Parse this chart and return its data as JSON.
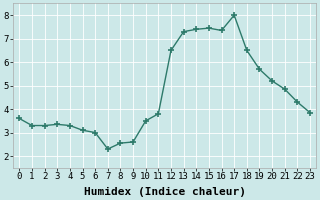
{
  "x": [
    0,
    1,
    2,
    3,
    4,
    5,
    6,
    7,
    8,
    9,
    10,
    11,
    12,
    13,
    14,
    15,
    16,
    17,
    18,
    19,
    20,
    21,
    22,
    23
  ],
  "y": [
    3.6,
    3.3,
    3.3,
    3.35,
    3.3,
    3.1,
    3.0,
    2.3,
    2.55,
    2.6,
    3.5,
    3.8,
    6.5,
    7.3,
    7.4,
    7.45,
    7.35,
    8.0,
    6.5,
    5.7,
    5.2,
    4.85,
    4.3,
    3.85
  ],
  "line_color": "#2d7a6a",
  "marker": "+",
  "marker_size": 4,
  "marker_lw": 1.2,
  "line_width": 1.0,
  "xlabel": "Humidex (Indice chaleur)",
  "xlim": [
    -0.5,
    23.5
  ],
  "ylim": [
    1.5,
    8.5
  ],
  "yticks": [
    2,
    3,
    4,
    5,
    6,
    7,
    8
  ],
  "xticks": [
    0,
    1,
    2,
    3,
    4,
    5,
    6,
    7,
    8,
    9,
    10,
    11,
    12,
    13,
    14,
    15,
    16,
    17,
    18,
    19,
    20,
    21,
    22,
    23
  ],
  "xtick_labels": [
    "0",
    "1",
    "2",
    "3",
    "4",
    "5",
    "6",
    "7",
    "8",
    "9",
    "10",
    "11",
    "12",
    "13",
    "14",
    "15",
    "16",
    "17",
    "18",
    "19",
    "20",
    "21",
    "22",
    "23"
  ],
  "background_color": "#cce8e8",
  "grid_color": "#ffffff",
  "grid_lw": 0.6,
  "tick_fontsize": 6.5,
  "xlabel_fontsize": 8,
  "spine_color": "#aaaaaa"
}
